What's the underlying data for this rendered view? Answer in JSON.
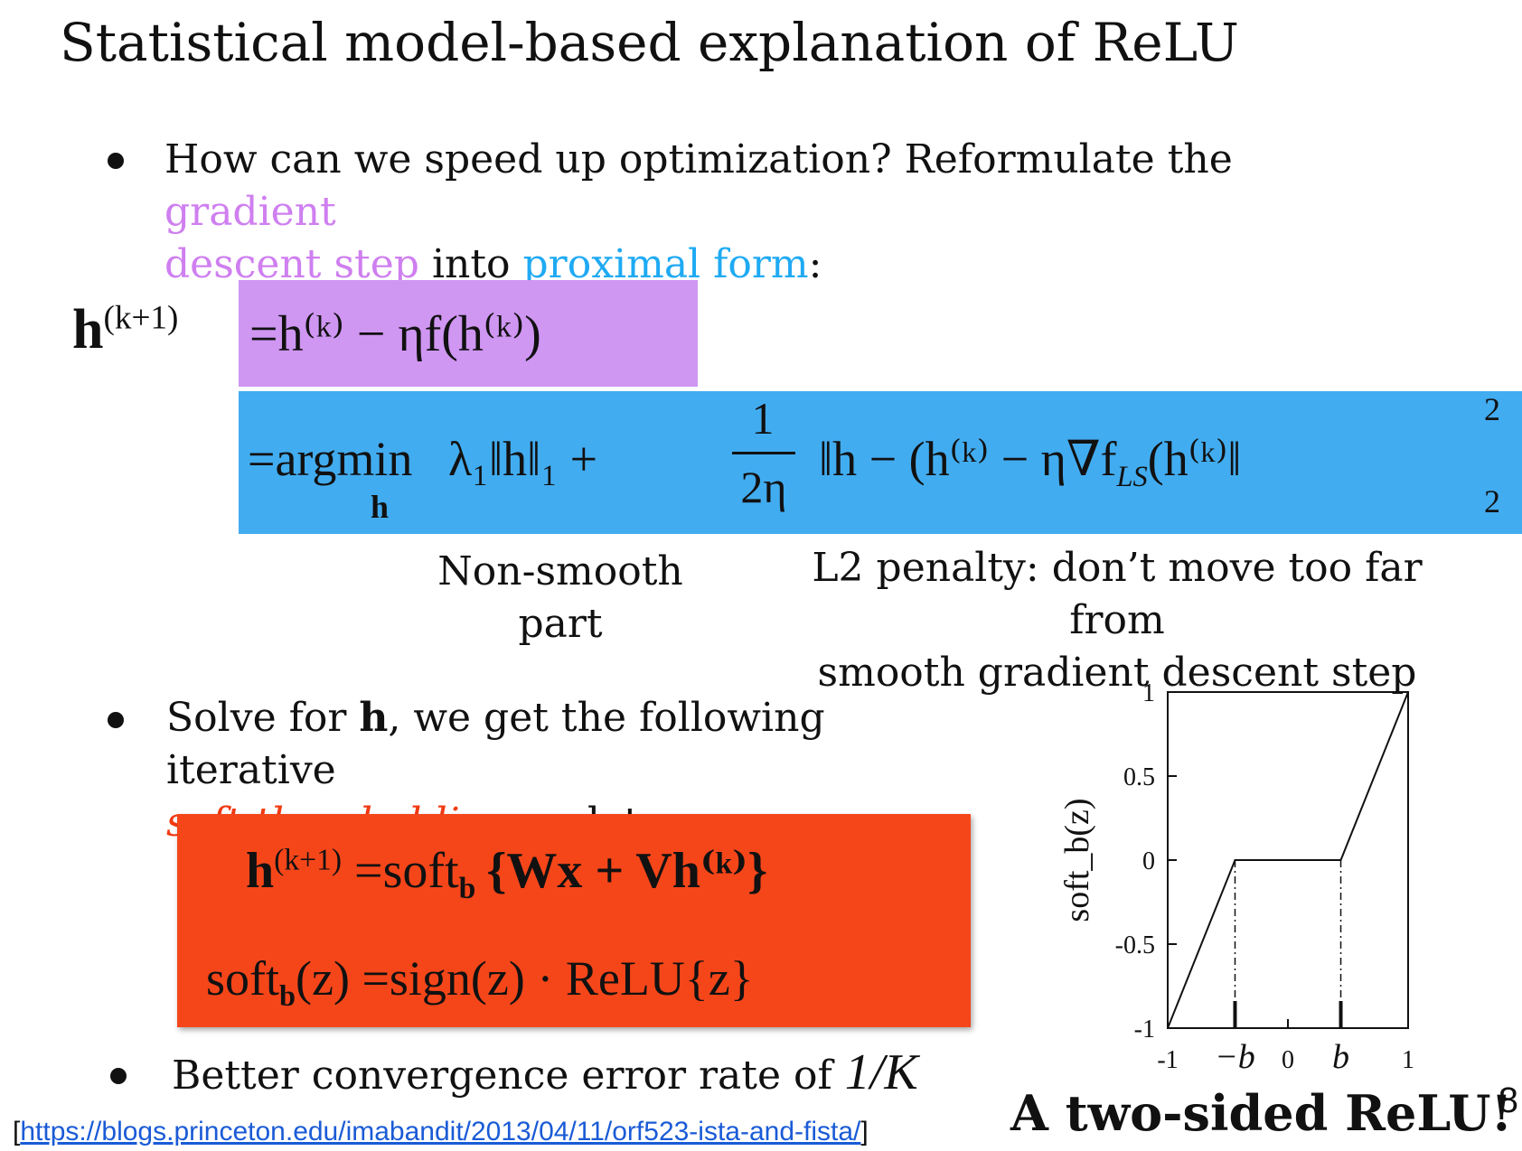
{
  "title": "Statistical model-based explanation of ReLU",
  "bullet1": {
    "prefix": "How can we speed up optimization? Reformulate the ",
    "gradient_word": "gradient",
    "descent_step": "descent step",
    "into": " into ",
    "proximal": "proximal form",
    "colon": ":"
  },
  "equation1": {
    "lhs": "h",
    "lhs_sup": "(k+1)",
    "line1": "=h⁽ᵏ⁾ − ηf(h⁽ᵏ⁾)",
    "line2_a": "=argmin",
    "line2_sub": "h",
    "line2_b": "λ₁‖h‖₁ +",
    "frac_num": "1",
    "frac_den": "2η",
    "line2_c": "‖h − (h⁽ᵏ⁾ − η∇f",
    "line2_ls": "LS",
    "line2_d": "(h⁽ᵏ⁾‖",
    "norm_sup": "2",
    "norm_sub": "2"
  },
  "captions": {
    "nonsmooth": "Non-smooth\npart",
    "l2": "L2 penalty: don’t move too far from\nsmooth gradient descent step"
  },
  "bullet2": {
    "a": "Solve for ",
    "h": "h",
    "b": ", we get the following iterative",
    "soft": "soft-thresholding",
    "c": " update:"
  },
  "equation2": {
    "line1_a": "h",
    "line1_sup": "(k+1)",
    "line1_b": " =soft",
    "line1_sub": "b",
    "line1_c": "{Wx + Vh⁽ᵏ⁾}",
    "line2_a": "soft",
    "line2_sub": "b",
    "line2_b": "(z) =sign(z) · ReLU{z}"
  },
  "bullet3": {
    "text": "Better convergence error rate of ",
    "rate": "1/K"
  },
  "link": {
    "open": "[",
    "url": "https://blogs.princeton.edu/imabandit/2013/04/11/orf523-ista-and-fista/",
    "close": "]"
  },
  "plot": {
    "ylabel": "soft_b(z)",
    "yticks": [
      "1",
      "0.5",
      "0",
      "-0.5",
      "-1"
    ],
    "xticks": [
      "-1",
      "−b",
      "0",
      "b",
      "1"
    ],
    "caption": "A two-sided ReLU!"
  },
  "page_number": "8",
  "chart_data": {
    "type": "line",
    "title": "",
    "xlabel": "",
    "ylabel": "soft_b(z)",
    "xlim": [
      -1,
      1
    ],
    "ylim": [
      -1,
      1
    ],
    "series": [
      {
        "x": [
          -1,
          -0.44,
          0.44,
          1
        ],
        "y": [
          -1,
          0,
          0,
          1
        ]
      }
    ],
    "yticks": [
      1,
      0.5,
      0,
      -0.5,
      -1
    ],
    "xtick_labels": [
      "-1",
      "−b",
      "0",
      "b",
      "1"
    ],
    "grid": false
  }
}
